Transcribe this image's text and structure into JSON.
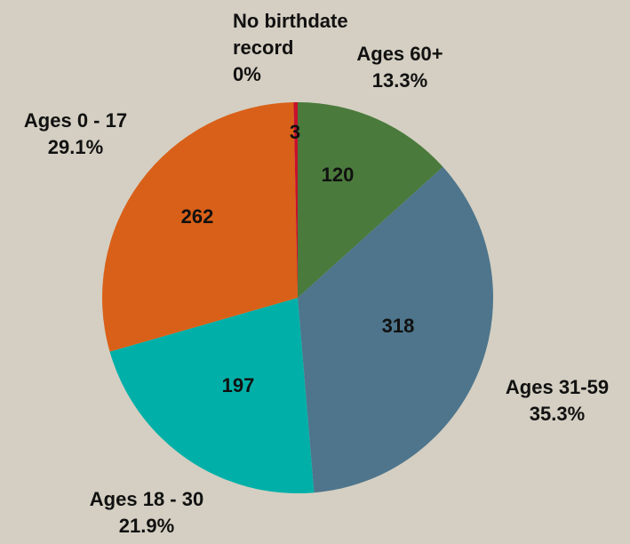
{
  "chart_data": {
    "type": "pie",
    "categories": [
      "Ages 60+",
      "Ages 31-59",
      "Ages 18 - 30",
      "Ages 0 - 17",
      "No birthdate record"
    ],
    "values": [
      120,
      318,
      197,
      262,
      3
    ],
    "percent_labels": [
      "13.3%",
      "35.3%",
      "21.9%",
      "29.1%",
      "0%"
    ],
    "colors": [
      "#4a7a3c",
      "#4e758c",
      "#00b0a8",
      "#d96018",
      "#c8102e"
    ]
  }
}
